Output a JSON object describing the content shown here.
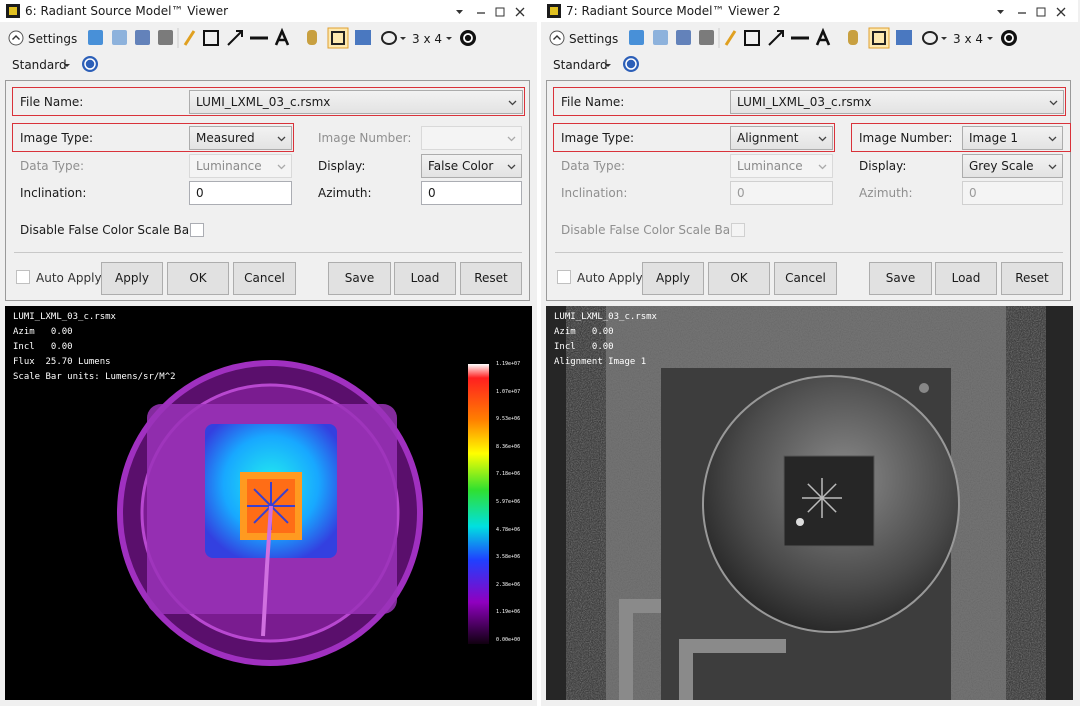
{
  "panels": [
    {
      "title": "6: Radiant Source Model™ Viewer",
      "toolbar": {
        "settings": "Settings",
        "grid": "3 x 4",
        "mode": "Standard"
      },
      "fields": {
        "file_name": {
          "label": "File Name:",
          "value": "LUMI_LXML_03_c.rsmx",
          "highlight": true,
          "disabled": false
        },
        "image_type": {
          "label": "Image Type:",
          "value": "Measured",
          "highlight": true,
          "disabled": false
        },
        "image_number": {
          "label": "Image Number:",
          "highlight": false,
          "disabled": true
        },
        "data_type": {
          "label": "Data Type:",
          "value": "Luminance",
          "highlight": false,
          "disabled": true
        },
        "display": {
          "label": "Display:",
          "value": "False Color",
          "highlight": false,
          "disabled": false
        },
        "inclination": {
          "label": "Inclination:",
          "value": "0",
          "highlight": false,
          "disabled": false
        },
        "azimuth": {
          "label": "Azimuth:",
          "value": "0",
          "highlight": false,
          "disabled": false
        },
        "scale_bar": {
          "label": "Disable False Color Scale Bar",
          "highlight": false,
          "disabled": false
        }
      },
      "buttons": {
        "auto_apply": "Auto Apply",
        "apply": "Apply",
        "ok": "OK",
        "cancel": "Cancel",
        "save": "Save",
        "load": "Load",
        "reset": "Reset"
      },
      "image": "false-color",
      "overlay": [
        "LUMI_LXML_03_c.rsmx",
        "Azim   0.00",
        "Incl   0.00",
        "Flux  25.70 Lumens",
        "Scale Bar units: Lumens/sr/M^2"
      ],
      "scale_labels": [
        "1.19e+07",
        "1.07e+07",
        "9.53e+06",
        "8.36e+06",
        "7.18e+06",
        "5.97e+06",
        "4.78e+06",
        "3.58e+06",
        "2.38e+06",
        "1.19e+06",
        "0.00e+00"
      ]
    },
    {
      "title": "7: Radiant Source Model™ Viewer 2",
      "toolbar": {
        "settings": "Settings",
        "grid": "3 x 4",
        "mode": "Standard"
      },
      "fields": {
        "file_name": {
          "label": "File Name:",
          "value": "LUMI_LXML_03_c.rsmx",
          "highlight": true,
          "disabled": false
        },
        "image_type": {
          "label": "Image Type:",
          "value": "Alignment",
          "highlight": true,
          "disabled": false
        },
        "image_number": {
          "label": "Image Number:",
          "value": "Image 1",
          "highlight": true,
          "disabled": false
        },
        "data_type": {
          "label": "Data Type:",
          "value": "Luminance",
          "highlight": false,
          "disabled": true
        },
        "display": {
          "label": "Display:",
          "value": "Grey Scale",
          "highlight": false,
          "disabled": false
        },
        "inclination": {
          "label": "Inclination:",
          "value": "0",
          "highlight": false,
          "disabled": true
        },
        "azimuth": {
          "label": "Azimuth:",
          "value": "0",
          "highlight": false,
          "disabled": true
        },
        "scale_bar": {
          "label": "Disable False Color Scale Bar",
          "highlight": false,
          "disabled": true
        }
      },
      "buttons": {
        "auto_apply": "Auto Apply",
        "apply": "Apply",
        "ok": "OK",
        "cancel": "Cancel",
        "save": "Save",
        "load": "Load",
        "reset": "Reset"
      },
      "image": "grey-scale",
      "overlay": [
        "LUMI_LXML_03_c.rsmx",
        "Azim   0.00",
        "Incl   0.00",
        "Alignment Image 1"
      ]
    }
  ]
}
